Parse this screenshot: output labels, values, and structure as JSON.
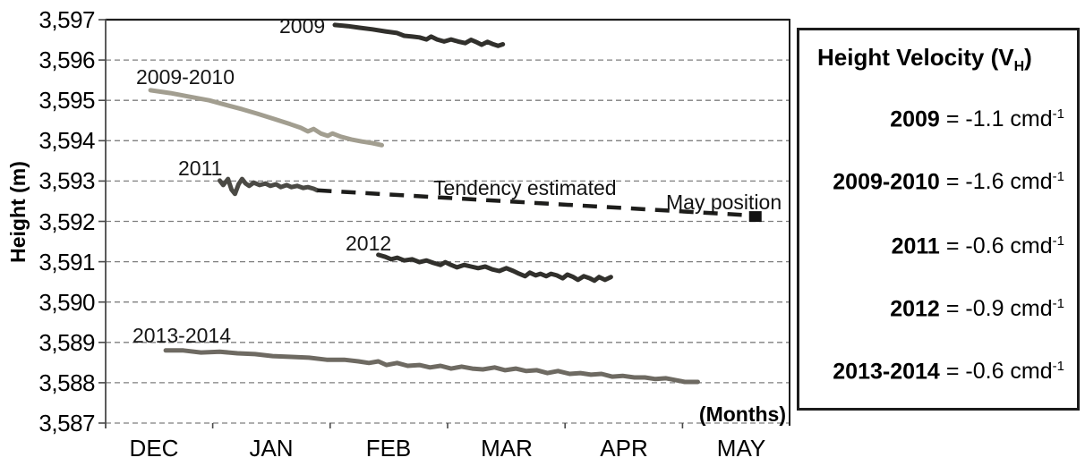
{
  "chart_data": {
    "type": "line",
    "title": "",
    "ylabel": "Height (m)",
    "xlabel": "(Months)",
    "x_axis": {
      "unit": "month_index (DEC=0 ... MAY=5)",
      "months": [
        "DEC",
        "JAN",
        "FEB",
        "MAR",
        "APR",
        "MAY"
      ]
    },
    "y_axis": {
      "min": 3587,
      "max": 3597,
      "step": 1,
      "tick_labels": [
        "3,597",
        "3,596",
        "3,595",
        "3,594",
        "3,593",
        "3,592",
        "3,591",
        "3,590",
        "3,589",
        "3,588",
        "3,587"
      ]
    },
    "grid": true,
    "series": [
      {
        "name": "2009",
        "color": "#31302c",
        "width": 5,
        "points": [
          [
            1.54,
            3596.87
          ],
          [
            1.65,
            3596.84
          ],
          [
            1.75,
            3596.8
          ],
          [
            1.86,
            3596.76
          ],
          [
            1.97,
            3596.71
          ],
          [
            2.07,
            3596.67
          ],
          [
            2.13,
            3596.6
          ],
          [
            2.2,
            3596.58
          ],
          [
            2.26,
            3596.56
          ],
          [
            2.32,
            3596.51
          ],
          [
            2.36,
            3596.58
          ],
          [
            2.41,
            3596.51
          ],
          [
            2.47,
            3596.46
          ],
          [
            2.53,
            3596.51
          ],
          [
            2.59,
            3596.46
          ],
          [
            2.65,
            3596.42
          ],
          [
            2.7,
            3596.5
          ],
          [
            2.74,
            3596.45
          ],
          [
            2.79,
            3596.38
          ],
          [
            2.84,
            3596.45
          ],
          [
            2.88,
            3596.4
          ],
          [
            2.93,
            3596.35
          ],
          [
            2.97,
            3596.39
          ]
        ]
      },
      {
        "name": "2009-2010",
        "color": "#a29e90",
        "width": 5,
        "points": [
          [
            -0.03,
            3595.25
          ],
          [
            0.14,
            3595.18
          ],
          [
            0.3,
            3595.09
          ],
          [
            0.47,
            3595.0
          ],
          [
            0.61,
            3594.89
          ],
          [
            0.75,
            3594.78
          ],
          [
            0.88,
            3594.67
          ],
          [
            1.02,
            3594.54
          ],
          [
            1.16,
            3594.41
          ],
          [
            1.25,
            3594.32
          ],
          [
            1.31,
            3594.23
          ],
          [
            1.36,
            3594.29
          ],
          [
            1.42,
            3594.18
          ],
          [
            1.48,
            3594.12
          ],
          [
            1.52,
            3594.18
          ],
          [
            1.59,
            3594.1
          ],
          [
            1.68,
            3594.03
          ],
          [
            1.77,
            3593.98
          ],
          [
            1.86,
            3593.94
          ],
          [
            1.94,
            3593.89
          ]
        ]
      },
      {
        "name": "2011",
        "color": "#4b4a45",
        "width": 5,
        "points": [
          [
            0.56,
            3593.01
          ],
          [
            0.59,
            3592.9
          ],
          [
            0.63,
            3593.05
          ],
          [
            0.66,
            3592.79
          ],
          [
            0.69,
            3592.68
          ],
          [
            0.72,
            3592.92
          ],
          [
            0.75,
            3593.05
          ],
          [
            0.78,
            3592.94
          ],
          [
            0.81,
            3592.88
          ],
          [
            0.85,
            3592.96
          ],
          [
            0.9,
            3592.9
          ],
          [
            0.95,
            3592.94
          ],
          [
            0.99,
            3592.88
          ],
          [
            1.04,
            3592.92
          ],
          [
            1.08,
            3592.85
          ],
          [
            1.13,
            3592.9
          ],
          [
            1.17,
            3592.85
          ],
          [
            1.22,
            3592.88
          ],
          [
            1.27,
            3592.83
          ],
          [
            1.31,
            3592.85
          ],
          [
            1.36,
            3592.81
          ],
          [
            1.39,
            3592.77
          ]
        ]
      },
      {
        "name": "2012",
        "color": "#31302c",
        "width": 5,
        "points": [
          [
            1.91,
            3591.17
          ],
          [
            1.97,
            3591.12
          ],
          [
            2.02,
            3591.06
          ],
          [
            2.07,
            3591.1
          ],
          [
            2.13,
            3591.03
          ],
          [
            2.2,
            3591.06
          ],
          [
            2.26,
            3590.99
          ],
          [
            2.32,
            3591.03
          ],
          [
            2.38,
            3590.97
          ],
          [
            2.44,
            3590.92
          ],
          [
            2.48,
            3590.99
          ],
          [
            2.53,
            3590.92
          ],
          [
            2.58,
            3590.86
          ],
          [
            2.64,
            3590.92
          ],
          [
            2.7,
            3590.88
          ],
          [
            2.76,
            3590.84
          ],
          [
            2.82,
            3590.88
          ],
          [
            2.88,
            3590.81
          ],
          [
            2.94,
            3590.77
          ],
          [
            3.0,
            3590.84
          ],
          [
            3.06,
            3590.77
          ],
          [
            3.11,
            3590.7
          ],
          [
            3.16,
            3590.64
          ],
          [
            3.2,
            3590.73
          ],
          [
            3.25,
            3590.66
          ],
          [
            3.29,
            3590.7
          ],
          [
            3.34,
            3590.64
          ],
          [
            3.38,
            3590.7
          ],
          [
            3.43,
            3590.66
          ],
          [
            3.48,
            3590.59
          ],
          [
            3.52,
            3590.68
          ],
          [
            3.57,
            3590.62
          ],
          [
            3.61,
            3590.55
          ],
          [
            3.66,
            3590.64
          ],
          [
            3.71,
            3590.59
          ],
          [
            3.75,
            3590.53
          ],
          [
            3.79,
            3590.62
          ],
          [
            3.84,
            3590.55
          ],
          [
            3.89,
            3590.62
          ]
        ]
      },
      {
        "name": "2013-2014",
        "color": "#6e6a62",
        "width": 5,
        "points": [
          [
            0.1,
            3588.8
          ],
          [
            0.25,
            3588.8
          ],
          [
            0.4,
            3588.75
          ],
          [
            0.56,
            3588.77
          ],
          [
            0.71,
            3588.73
          ],
          [
            0.86,
            3588.71
          ],
          [
            1.01,
            3588.66
          ],
          [
            1.17,
            3588.64
          ],
          [
            1.32,
            3588.62
          ],
          [
            1.47,
            3588.57
          ],
          [
            1.62,
            3588.57
          ],
          [
            1.74,
            3588.53
          ],
          [
            1.83,
            3588.49
          ],
          [
            1.91,
            3588.53
          ],
          [
            1.98,
            3588.44
          ],
          [
            2.07,
            3588.49
          ],
          [
            2.16,
            3588.42
          ],
          [
            2.26,
            3588.44
          ],
          [
            2.35,
            3588.38
          ],
          [
            2.44,
            3588.42
          ],
          [
            2.53,
            3588.35
          ],
          [
            2.62,
            3588.4
          ],
          [
            2.71,
            3588.35
          ],
          [
            2.8,
            3588.33
          ],
          [
            2.9,
            3588.38
          ],
          [
            2.99,
            3588.31
          ],
          [
            3.08,
            3588.35
          ],
          [
            3.17,
            3588.29
          ],
          [
            3.26,
            3588.31
          ],
          [
            3.35,
            3588.24
          ],
          [
            3.44,
            3588.29
          ],
          [
            3.54,
            3588.22
          ],
          [
            3.63,
            3588.24
          ],
          [
            3.72,
            3588.2
          ],
          [
            3.81,
            3588.22
          ],
          [
            3.9,
            3588.15
          ],
          [
            3.99,
            3588.17
          ],
          [
            4.09,
            3588.13
          ],
          [
            4.18,
            3588.13
          ],
          [
            4.27,
            3588.09
          ],
          [
            4.36,
            3588.11
          ],
          [
            4.45,
            3588.06
          ],
          [
            4.52,
            3588.02
          ],
          [
            4.57,
            3588.02
          ],
          [
            4.63,
            3588.02
          ]
        ]
      }
    ],
    "tendency": {
      "label": "Tendency estimated",
      "color": "#1d1d1b",
      "style": "dashed",
      "points": [
        [
          1.39,
          3592.77
        ],
        [
          5.07,
          3592.15
        ]
      ]
    },
    "may_marker": {
      "label": "May position",
      "shape": "square",
      "color": "#111111",
      "x": 5.12,
      "y": 3592.12
    }
  },
  "legend": {
    "title_pre": "Height Velocity (V",
    "title_sub": "H",
    "title_post": ")",
    "entries": [
      {
        "year": "2009",
        "rest": "= -1.1 cmd",
        "exp": "-1"
      },
      {
        "year": "2009-2010",
        "rest": "= -1.6 cmd",
        "exp": "-1"
      },
      {
        "year": "2011",
        "rest": "= -0.6 cmd",
        "exp": "-1"
      },
      {
        "year": "2012",
        "rest": "= -0.9 cmd",
        "exp": "-1"
      },
      {
        "year": "2013-2014",
        "rest": "= -0.6 cmd",
        "exp": "-1"
      }
    ]
  }
}
